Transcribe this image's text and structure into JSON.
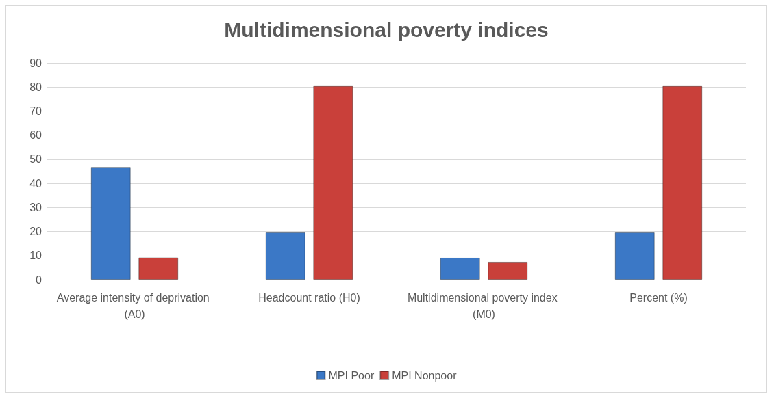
{
  "chart_data": {
    "type": "bar",
    "title": "Multidimensional poverty indices",
    "categories": [
      "Average intensity of deprivation (A0)",
      "Headcount ratio (H0)",
      "Multidimensional poverty index (M0)",
      "Percent (%)"
    ],
    "series": [
      {
        "name": "MPI Poor",
        "color": "#3b78c6",
        "values": [
          46.8,
          19.6,
          9.1,
          19.6
        ]
      },
      {
        "name": "MPI Nonpoor",
        "color": "#c9403a",
        "values": [
          9.2,
          80.4,
          7.4,
          80.4
        ]
      }
    ],
    "ylim": [
      0,
      90
    ],
    "yticks": [
      0,
      10,
      20,
      30,
      40,
      50,
      60,
      70,
      80,
      90
    ],
    "grid": "y",
    "legend": "bottom"
  }
}
